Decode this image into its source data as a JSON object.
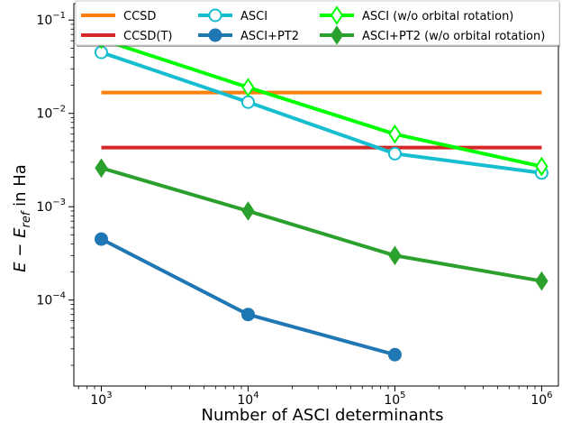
{
  "chart_data": {
    "type": "line",
    "xlabel": "Number of ASCI determinants",
    "ylabel_parts": {
      "base": "E − E",
      "sub": "ref",
      "suffix": " in Ha"
    },
    "x_scale": "log",
    "y_scale": "log",
    "xlim": [
      650,
      1300000
    ],
    "ylim": [
      1.2e-05,
      0.15
    ],
    "x_ticks": [
      {
        "value": 1000,
        "base": "10",
        "exp": "3"
      },
      {
        "value": 10000,
        "base": "10",
        "exp": "4"
      },
      {
        "value": 100000,
        "base": "10",
        "exp": "5"
      },
      {
        "value": 1000000,
        "base": "10",
        "exp": "6"
      }
    ],
    "y_ticks": [
      {
        "value": 0.1,
        "base": "10",
        "exp": "−1"
      },
      {
        "value": 0.01,
        "base": "10",
        "exp": "−2"
      },
      {
        "value": 0.001,
        "base": "10",
        "exp": "−3"
      },
      {
        "value": 0.0001,
        "base": "10",
        "exp": "−4"
      }
    ],
    "grid": false,
    "legend_position": "top",
    "series": [
      {
        "name": "CCSD",
        "color": "#ff7f0e",
        "marker": "none",
        "fill": "none",
        "x": [
          1000,
          1000000
        ],
        "y": [
          0.0167,
          0.0167
        ]
      },
      {
        "name": "CCSD(T)",
        "color": "#d62728",
        "marker": "none",
        "fill": "none",
        "x": [
          1000,
          1000000
        ],
        "y": [
          0.0043,
          0.0043
        ]
      },
      {
        "name": "ASCI",
        "color": "#17becf",
        "marker": "circle",
        "fill": "open",
        "x": [
          1000,
          10000,
          100000,
          1000000
        ],
        "y": [
          0.045,
          0.0132,
          0.0037,
          0.0023
        ]
      },
      {
        "name": "ASCI+PT2",
        "color": "#1f77b4",
        "marker": "circle",
        "fill": "solid",
        "x": [
          1000,
          10000,
          100000
        ],
        "y": [
          0.00045,
          7e-05,
          2.6e-05
        ]
      },
      {
        "name": "ASCI (w/o orbital rotation)",
        "color": "#00ff00",
        "marker": "diamond",
        "fill": "open",
        "x": [
          1000,
          10000,
          100000,
          1000000
        ],
        "y": [
          0.062,
          0.019,
          0.006,
          0.0027
        ]
      },
      {
        "name": "ASCI+PT2 (w/o orbital rotation)",
        "color": "#2ca02c",
        "marker": "diamond",
        "fill": "solid",
        "x": [
          1000,
          10000,
          100000,
          1000000
        ],
        "y": [
          0.0026,
          0.0009,
          0.0003,
          0.00016
        ]
      }
    ]
  }
}
